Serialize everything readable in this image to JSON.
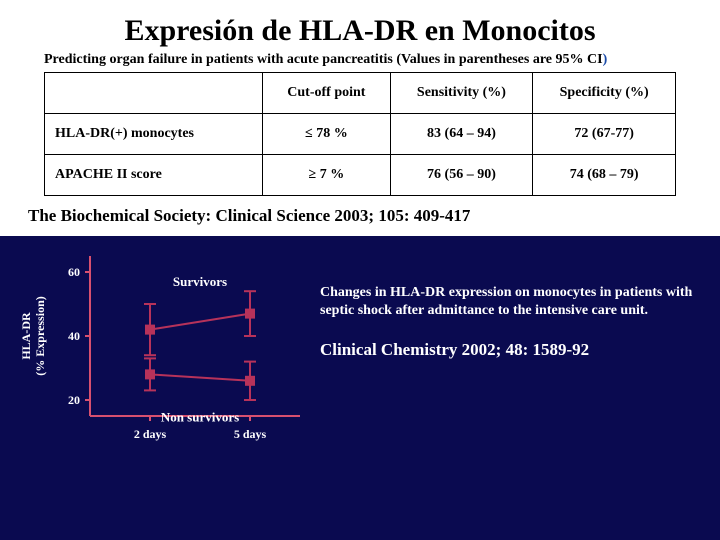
{
  "title": "Expresión de HLA-DR en Monocitos",
  "subtitle_main": "Predicting organ failure in patients with acute pancreatitis (Values in parentheses are 95% CI",
  "subtitle_paren": ")",
  "table": {
    "headers": [
      "",
      "Cut-off point",
      "Sensitivity (%)",
      "Specificity (%)"
    ],
    "rows": [
      [
        "HLA-DR(+) monocytes",
        "≤ 78 %",
        "83 (64 – 94)",
        "72 (67-77)"
      ],
      [
        "APACHE II score",
        "≥ 7 %",
        "76 (56 – 90)",
        "74 (68 – 79)"
      ]
    ]
  },
  "citation1": "The Biochemical Society: Clinical Science 2003; 105: 409-417",
  "chart": {
    "y_label": "HLA-DR\n(% Expression)",
    "y_ticks": [
      20,
      40,
      60
    ],
    "x_ticks": [
      "2 days",
      "5 days"
    ],
    "series": [
      {
        "label": "Survivors",
        "points": [
          {
            "x": 0,
            "y": 42,
            "err": 8
          },
          {
            "x": 1,
            "y": 47,
            "err": 7
          }
        ],
        "color": "#b7325a"
      },
      {
        "label": "Non survivors",
        "points": [
          {
            "x": 0,
            "y": 28,
            "err": 5
          },
          {
            "x": 1,
            "y": 26,
            "err": 6
          }
        ],
        "color": "#b7325a"
      }
    ],
    "axis_color": "#d8506f",
    "ylim": [
      15,
      65
    ],
    "label_fontsize": 12,
    "tick_fontsize": 12,
    "series_fontsize": 13
  },
  "desc": "Changes in HLA-DR expression on monocytes in patients with septic shock after admittance to the intensive care unit.",
  "citation2": "Clinical Chemistry 2002; 48: 1589-92"
}
